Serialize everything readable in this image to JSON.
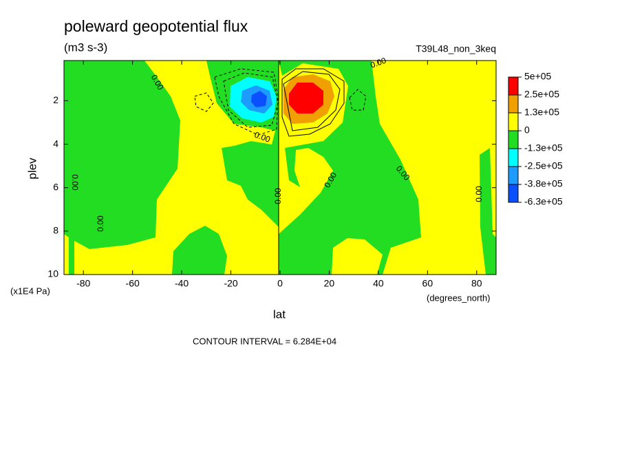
{
  "chart_data": {
    "type": "contour",
    "title": "poleward geopotential flux",
    "subtitle": "(m3 s-3)",
    "dataset": "T39L48_non_3keq",
    "x_label": "lat",
    "x_units": "(degrees_north)",
    "y_label": "plev",
    "y_units": "(x1E4 Pa)",
    "xlim": [
      -87.9,
      87.9
    ],
    "xticks": [
      -80,
      -60,
      -40,
      -20,
      0,
      20,
      40,
      60,
      80
    ],
    "ylim": [
      10,
      0.15
    ],
    "yticks": [
      2,
      4,
      6,
      8,
      10
    ],
    "colorbar": {
      "levels": [
        {
          "value": 500000,
          "label": "5e+05"
        },
        {
          "value": 250000,
          "label": "2.5e+05"
        },
        {
          "value": 130000,
          "label": "1.3e+05"
        },
        0,
        {
          "value": -130000,
          "label": "-1.3e+05"
        },
        {
          "value": -250000,
          "label": "-2.5e+05"
        },
        {
          "value": -380000,
          "label": "-3.8e+05"
        },
        {
          "value": -630000,
          "label": "-6.3e+05"
        }
      ],
      "colors": [
        "#ff0000",
        "#f0a000",
        "#ffff00",
        "#22dd22",
        "#00ffff",
        "#1e9bff",
        "#0a50ff"
      ]
    },
    "contour_labels": [
      "0.00",
      "0.00",
      "0.00",
      "0.00",
      "0.00",
      "0.00",
      "0.00",
      "0.00",
      "0.00"
    ],
    "footer": "CONTOUR INTERVAL = 6.284E+04"
  }
}
